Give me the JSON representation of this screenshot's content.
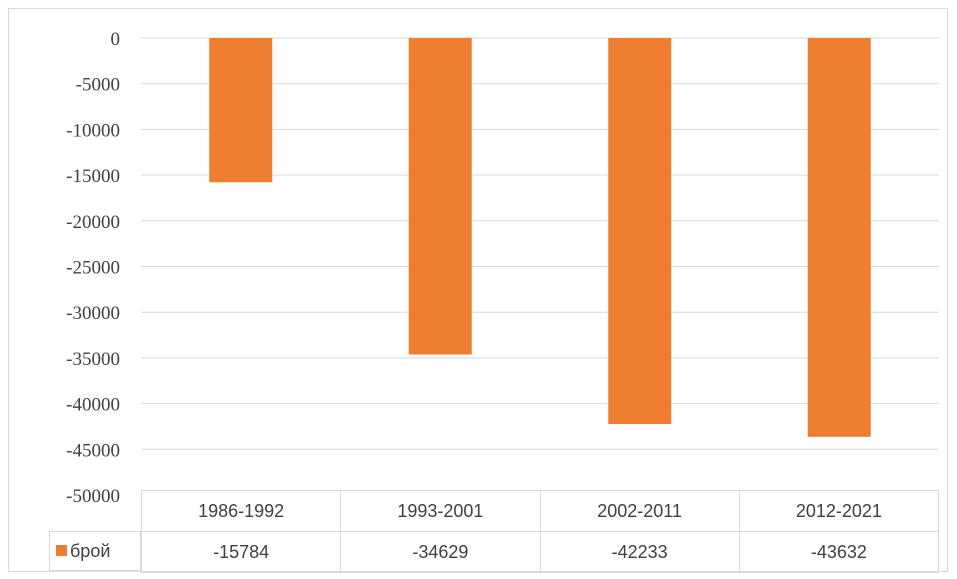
{
  "colors": {
    "bar": "#ed7d31",
    "grid": "#d9d9d9",
    "text": "#404040"
  },
  "chart_data": {
    "type": "bar",
    "categories": [
      "1986-1992",
      "1993-2001",
      "2002-2011",
      "2012-2021"
    ],
    "series": [
      {
        "name": "брой",
        "values": [
          -15784,
          -34629,
          -42233,
          -43632
        ]
      }
    ],
    "ylim": [
      -50000,
      0
    ],
    "yticks": [
      "0",
      "-5000",
      "-10000",
      "-15000",
      "-20000",
      "-25000",
      "-30000",
      "-35000",
      "-40000",
      "-45000",
      "-50000"
    ],
    "table_values": [
      "-15784",
      "-34629",
      "-42233",
      "-43632"
    ],
    "grid": true,
    "legend": "data-table",
    "legend_icon": "square-swatch"
  }
}
